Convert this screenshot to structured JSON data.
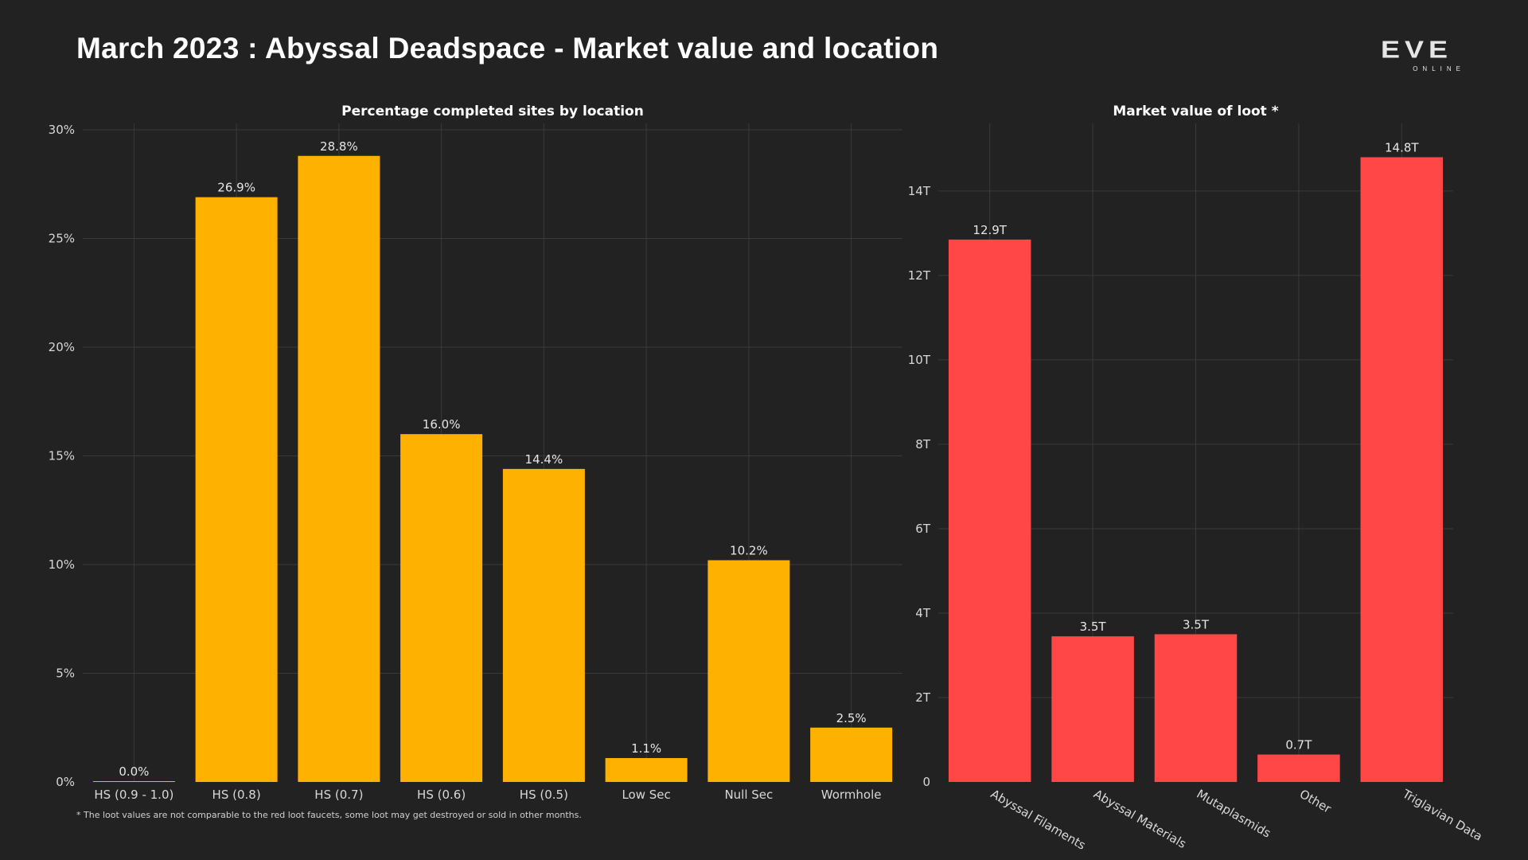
{
  "header": {
    "title": "March 2023 : Abyssal Deadspace - Market value and location",
    "logo_text": "EVE",
    "logo_subtext": "ONLINE"
  },
  "colors": {
    "background": "#222222",
    "location_bars": "#FFB100",
    "loot_bars": "#FF4747",
    "grid": "#3a3a3a"
  },
  "chart_data": [
    {
      "type": "bar",
      "title": "Percentage completed sites by location",
      "categories": [
        "HS (0.9 - 1.0)",
        "HS (0.8)",
        "HS (0.7)",
        "HS (0.6)",
        "HS (0.5)",
        "Low Sec",
        "Null Sec",
        "Wormhole"
      ],
      "values": [
        0.0,
        26.9,
        28.8,
        16.0,
        14.4,
        1.1,
        10.2,
        2.5
      ],
      "data_labels": [
        "0.0%",
        "26.9%",
        "28.8%",
        "16.0%",
        "14.4%",
        "1.1%",
        "10.2%",
        "2.5%"
      ],
      "yticks": [
        0,
        5,
        10,
        15,
        20,
        25,
        30
      ],
      "ytick_labels": [
        "0%",
        "5%",
        "10%",
        "15%",
        "20%",
        "25%",
        "30%"
      ],
      "ylim": [
        0,
        30
      ],
      "xlabel": "",
      "ylabel": "",
      "grid": true,
      "color": "#FFB100"
    },
    {
      "type": "bar",
      "title": "Market value of loot *",
      "categories": [
        "Abyssal Filaments",
        "Abyssal Materials",
        "Mutaplasmids",
        "Other",
        "Triglavian Data"
      ],
      "values": [
        12.85,
        3.45,
        3.5,
        0.65,
        14.8
      ],
      "data_labels": [
        "12.9T",
        "3.5T",
        "3.5T",
        "0.7T",
        "14.8T"
      ],
      "yticks": [
        0,
        2,
        4,
        6,
        8,
        10,
        12,
        14
      ],
      "ytick_labels": [
        "0",
        "2T",
        "4T",
        "6T",
        "8T",
        "10T",
        "12T",
        "14T"
      ],
      "ylim": [
        0,
        15.45
      ],
      "xlabel": "",
      "ylabel": "",
      "grid": true,
      "color": "#FF4747"
    }
  ],
  "footnote": "* The loot values are not comparable to the red loot faucets, some loot may get destroyed or sold in other months."
}
